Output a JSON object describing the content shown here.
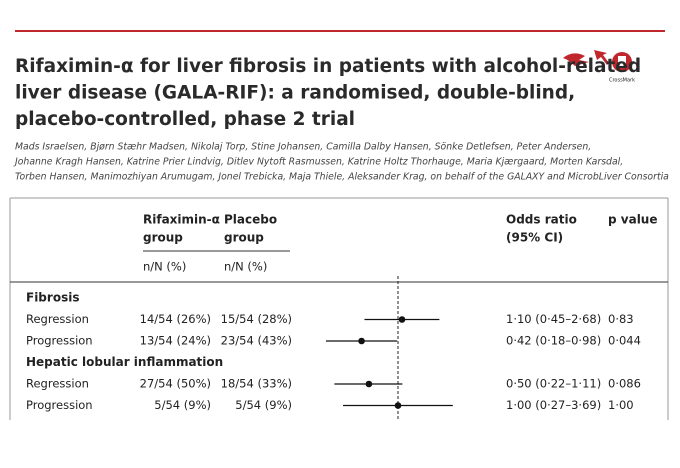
{
  "header": {
    "title_lines": [
      "Rifaximin-α for liver fibrosis in patients with alcohol-related",
      "liver disease (GALA-RIF): a randomised, double-blind,",
      "placebo-controlled, phase 2 trial"
    ],
    "author_lines": [
      "Mads Israelsen, Bjørn Stæhr Madsen, Nikolaj Torp, Stine Johansen, Camilla Dalby Hansen, Sönke Detlefsen, Peter Andersen,",
      "Johanne Kragh Hansen, Katrine Prier Lindvig, Ditlev Nytoft Rasmussen, Katrine Holtz Thorhauge, Maria Kjærgaard, Morten Karsdal,",
      "Torben Hansen, Manimozhiyan Arumugam, Jonel Trebicka, Maja Thiele, Aleksander Krag, on behalf of the GALAXY and MicrobLiver Consortia"
    ],
    "crossmark": "CrossMark"
  },
  "table": {
    "columns": {
      "treatment": [
        "Rifaximin-α",
        "group"
      ],
      "placebo": [
        "Placebo",
        "group"
      ],
      "treatment_unit": "n/N (%)",
      "placebo_unit": "n/N (%)",
      "odds_ratio": [
        "Odds ratio",
        "(95% CI)"
      ],
      "p_value": "p value"
    },
    "sections": [
      {
        "title": "Fibrosis",
        "rows": [
          {
            "label": "Regression",
            "treatment": "14/54 (26%)",
            "placebo": "15/54 (28%)",
            "odds_ratio": 1.1,
            "ci_low": 0.45,
            "ci_high": 2.68,
            "odds_ratio_label": "1·10 (0·45–2·68)",
            "p_value": "0·83"
          },
          {
            "label": "Progression",
            "treatment": "13/54 (24%)",
            "placebo": "23/54 (43%)",
            "odds_ratio": 0.42,
            "ci_low": 0.18,
            "ci_high": 0.98,
            "odds_ratio_label": "0·42 (0·18–0·98)",
            "p_value": "0·044"
          }
        ]
      },
      {
        "title": "Hepatic lobular inflammation",
        "rows": [
          {
            "label": "Regression",
            "treatment": "27/54 (50%)",
            "placebo": "18/54 (33%)",
            "odds_ratio": 0.5,
            "ci_low": 0.22,
            "ci_high": 1.11,
            "odds_ratio_label": "0·50 (0·22–1·11)",
            "p_value": "0·086"
          },
          {
            "label": "Progression",
            "treatment": "5/54 (9%)",
            "placebo": "5/54 (9%)",
            "odds_ratio": 1.0,
            "ci_low": 0.27,
            "ci_high": 3.69,
            "odds_ratio_label": "1·00 (0·27–3·69)",
            "p_value": "1·00"
          }
        ]
      }
    ]
  }
}
